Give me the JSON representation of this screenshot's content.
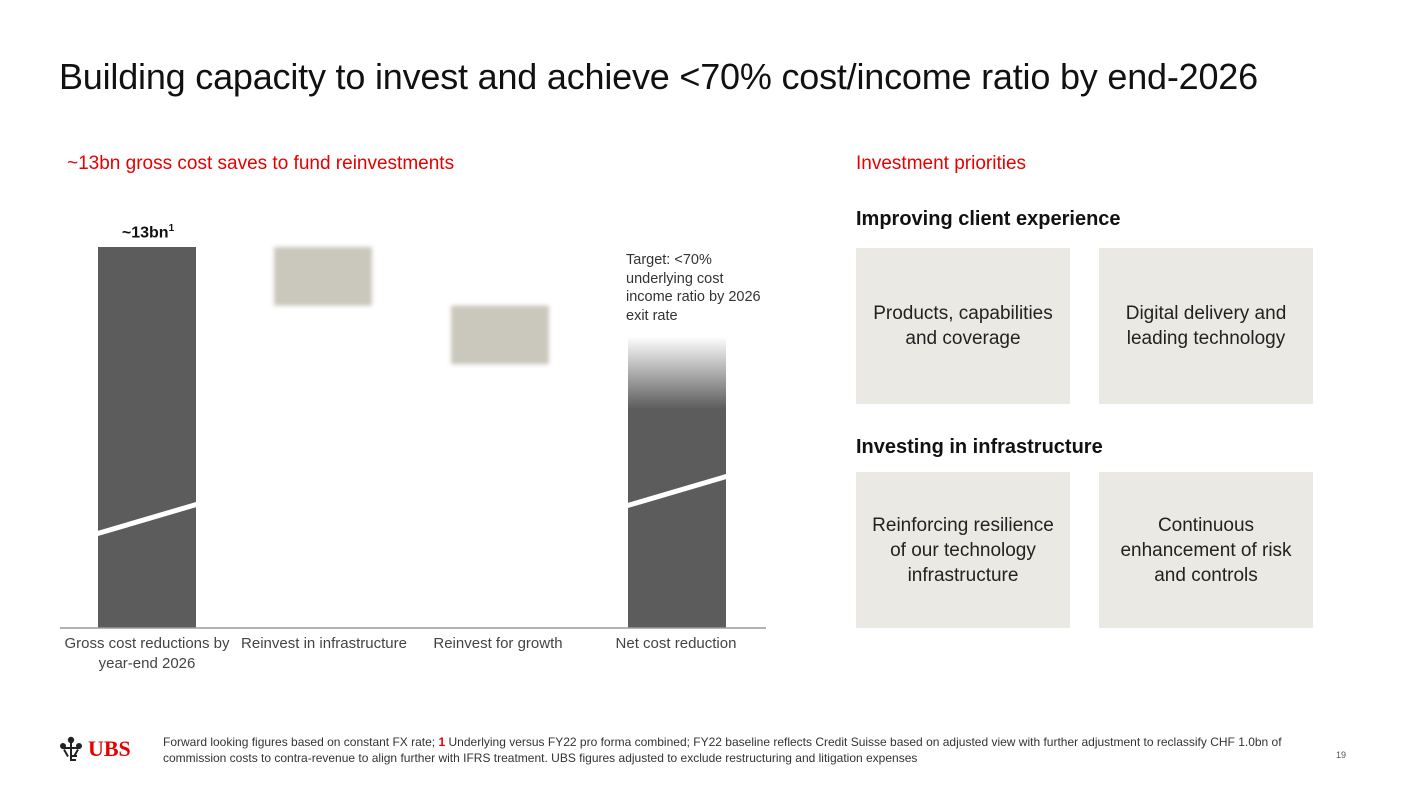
{
  "title": "Building capacity to invest and achieve <70% cost/income ratio by end-2026",
  "left_section": {
    "heading": "~13bn gross cost saves to fund reinvestments"
  },
  "right_section": {
    "heading": "Investment priorities",
    "groups": [
      {
        "heading": "Improving client experience",
        "boxes": [
          "Products, capabilities and coverage",
          "Digital delivery and leading technology"
        ]
      },
      {
        "heading": "Investing in infrastructure",
        "boxes": [
          "Reinforcing resilience of our technology infrastructure",
          "Continuous enhancement of risk and controls"
        ]
      }
    ]
  },
  "chart_data": {
    "type": "bar",
    "subtype": "waterfall",
    "categories": [
      "Gross cost reductions by year-end 2026",
      "Reinvest in infrastructure",
      "Reinvest for growth",
      "Net cost reduction"
    ],
    "total_label": "~13bn",
    "total_label_footnote": "1",
    "values": [
      13.0,
      -2.0,
      -2.0,
      9.0
    ],
    "value_unit": "bn",
    "ylim": [
      0,
      13
    ],
    "axis_break": true,
    "annotation": "Target: <70% underlying cost income ratio by 2026 exit rate",
    "colors": {
      "total": "#5b5c5b",
      "reinvest": "#cac8bc"
    }
  },
  "footnote": {
    "pre": "Forward looking figures based on constant FX rate; ",
    "marker": "1",
    "post": " Underlying versus FY22 pro forma combined; FY22 baseline reflects Credit Suisse based on adjusted view with further adjustment to reclassify CHF 1.0bn of commission costs to contra-revenue to align further with IFRS treatment. UBS figures adjusted to exclude restructuring and litigation expenses"
  },
  "logo": {
    "text": "UBS"
  },
  "page_number": "19"
}
